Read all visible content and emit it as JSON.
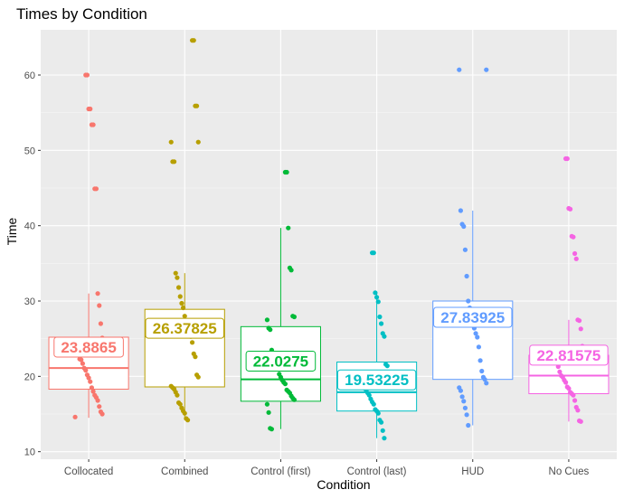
{
  "chart_data": {
    "type": "box",
    "title": "Times by Condition",
    "xlabel": "Condition",
    "ylabel": "Time",
    "ylim": [
      9,
      66
    ],
    "yticks": [
      10,
      20,
      30,
      40,
      50,
      60
    ],
    "categories": [
      "Collocated",
      "Combined",
      "Control (first)",
      "Control (last)",
      "HUD",
      "No Cues"
    ],
    "colors": [
      "#F8766D",
      "#B79F00",
      "#00BA38",
      "#00BFC4",
      "#619CFF",
      "#F564E3"
    ],
    "boxes": [
      {
        "q1": 18.3,
        "median": 21.1,
        "q3": 25.2,
        "lower": 14.5,
        "upper": 31.0,
        "mean_label": "23.8865"
      },
      {
        "q1": 18.6,
        "median": 25.3,
        "q3": 28.9,
        "lower": 14.2,
        "upper": 33.7,
        "mean_label": "26.37825"
      },
      {
        "q1": 16.7,
        "median": 19.6,
        "q3": 26.6,
        "lower": 13.0,
        "upper": 39.7,
        "mean_label": "22.0275"
      },
      {
        "q1": 15.4,
        "median": 17.9,
        "q3": 21.9,
        "lower": 11.8,
        "upper": 31.1,
        "mean_label": "19.53225"
      },
      {
        "q1": 19.6,
        "median": 27.8,
        "q3": 30.0,
        "lower": 13.5,
        "upper": 42.0,
        "mean_label": "27.83925"
      },
      {
        "q1": 17.7,
        "median": 20.1,
        "q3": 22.8,
        "lower": 14.0,
        "upper": 27.5,
        "mean_label": "22.81575"
      }
    ],
    "points": [
      [
        14.6,
        15.0,
        15.3,
        16.0,
        16.8,
        17.2,
        17.5,
        18.0,
        18.5,
        19.3,
        19.8,
        20.2,
        20.8,
        21.1,
        21.7,
        22.2,
        22.3,
        23.8,
        24.1,
        24.5,
        25.1,
        27.0,
        29.4,
        31.0,
        44.9,
        44.9,
        53.4,
        53.4,
        55.5,
        55.5,
        60.0,
        60.0
      ],
      [
        14.2,
        14.4,
        15.1,
        15.4,
        15.8,
        16.3,
        16.5,
        17.5,
        17.9,
        18.3,
        18.5,
        18.7,
        19.9,
        20.2,
        22.6,
        23.0,
        24.5,
        25.3,
        25.6,
        26.1,
        27.3,
        28.0,
        29.1,
        29.7,
        30.6,
        31.8,
        33.1,
        33.7,
        48.5,
        48.5,
        51.1,
        51.1,
        55.9,
        55.9,
        64.6,
        64.6
      ],
      [
        13.0,
        13.1,
        15.2,
        16.3,
        16.9,
        17.1,
        17.4,
        17.8,
        18.0,
        18.2,
        19.0,
        19.2,
        19.5,
        19.9,
        20.3,
        21.2,
        22.0,
        22.4,
        23.1,
        23.5,
        26.2,
        26.4,
        27.5,
        27.9,
        28.0,
        34.1,
        34.4,
        39.7,
        47.1,
        47.1
      ],
      [
        11.8,
        12.8,
        13.9,
        14.2,
        15.1,
        15.4,
        15.6,
        16.3,
        16.6,
        17.0,
        17.5,
        17.8,
        18.2,
        18.4,
        18.8,
        19.3,
        20.2,
        21.4,
        21.6,
        25.3,
        25.7,
        27.0,
        27.9,
        29.9,
        30.5,
        31.1,
        36.4,
        36.4
      ],
      [
        13.5,
        14.9,
        15.8,
        16.7,
        17.3,
        18.1,
        18.5,
        19.1,
        19.6,
        19.9,
        20.7,
        22.1,
        23.9,
        25.2,
        25.7,
        26.4,
        28.0,
        28.5,
        29.1,
        30.0,
        33.3,
        36.8,
        39.9,
        40.2,
        42.0,
        60.7,
        60.7
      ],
      [
        14.0,
        14.1,
        15.5,
        15.9,
        16.8,
        17.5,
        17.7,
        17.9,
        18.4,
        18.6,
        19.2,
        19.5,
        19.9,
        20.1,
        20.6,
        21.3,
        21.8,
        22.1,
        24.0,
        26.3,
        27.4,
        27.5,
        35.6,
        36.3,
        38.5,
        38.6,
        42.2,
        42.3,
        48.9,
        48.9
      ]
    ]
  }
}
